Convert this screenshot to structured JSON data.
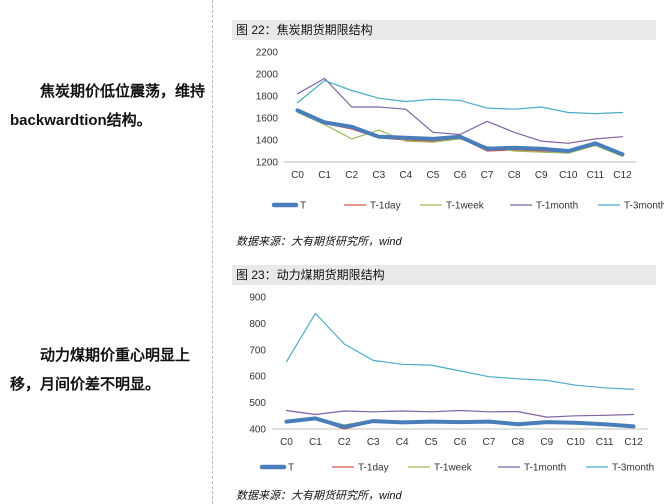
{
  "text": {
    "para1": "焦炭期价低位震荡，维持backwardtion结构。",
    "para2": "动力煤期价重心明显上移，月间价差不明显。"
  },
  "colors": {
    "T": "#4a7ebb",
    "T-1day": "#d9534f",
    "T-1week": "#9bbb59",
    "T-1month": "#7f63a1",
    "T-3month": "#4bacc6"
  },
  "chart_data": [
    {
      "type": "line",
      "title": "图 22：焦炭期货期限结构",
      "source": "数据来源：大有期货研究所，wind",
      "categories": [
        "C0",
        "C1",
        "C2",
        "C3",
        "C4",
        "C5",
        "C6",
        "C7",
        "C8",
        "C9",
        "C10",
        "C11",
        "C12"
      ],
      "ylim": [
        1200,
        2200
      ],
      "yticks": [
        1200,
        1400,
        1600,
        1800,
        2000,
        2200
      ],
      "legend_position": "bottom",
      "series": [
        {
          "name": "T",
          "values": [
            1670,
            1560,
            1520,
            1430,
            1420,
            1410,
            1430,
            1320,
            1330,
            1320,
            1300,
            1370,
            1270
          ]
        },
        {
          "name": "T-1day",
          "values": [
            1660,
            1550,
            1500,
            1420,
            1400,
            1390,
            1420,
            1300,
            1310,
            1300,
            1290,
            1360,
            1260
          ]
        },
        {
          "name": "T-1week",
          "values": [
            1650,
            1540,
            1410,
            1490,
            1390,
            1380,
            1410,
            1340,
            1300,
            1290,
            1280,
            1350,
            1250
          ]
        },
        {
          "name": "T-1month",
          "values": [
            1820,
            1960,
            1700,
            1700,
            1680,
            1470,
            1450,
            1570,
            1470,
            1390,
            1370,
            1410,
            1430
          ]
        },
        {
          "name": "T-3month",
          "values": [
            1740,
            1940,
            1850,
            1780,
            1750,
            1770,
            1760,
            1690,
            1680,
            1700,
            1650,
            1640,
            1650
          ]
        }
      ]
    },
    {
      "type": "line",
      "title": "图 23：动力煤期货期限结构",
      "source": "数据来源：大有期货研究所，wind",
      "categories": [
        "C0",
        "C1",
        "C2",
        "C3",
        "C4",
        "C5",
        "C6",
        "C7",
        "C8",
        "C9",
        "C10",
        "C11",
        "C12"
      ],
      "ylim": [
        400,
        900
      ],
      "yticks": [
        400,
        500,
        600,
        700,
        800,
        900
      ],
      "legend_position": "bottom",
      "series": [
        {
          "name": "T",
          "values": [
            428,
            440,
            408,
            430,
            425,
            428,
            426,
            428,
            418,
            426,
            424,
            418,
            410
          ]
        },
        {
          "name": "T-1day",
          "values": [
            425,
            438,
            400,
            428,
            422,
            426,
            424,
            426,
            414,
            424,
            422,
            416,
            408
          ]
        },
        {
          "name": "T-1week",
          "values": [
            430,
            442,
            415,
            435,
            428,
            430,
            428,
            432,
            420,
            428,
            426,
            420,
            412
          ]
        },
        {
          "name": "T-1month",
          "values": [
            470,
            455,
            468,
            465,
            468,
            465,
            470,
            465,
            466,
            445,
            450,
            452,
            455
          ]
        },
        {
          "name": "T-3month",
          "values": [
            655,
            838,
            722,
            660,
            645,
            642,
            620,
            598,
            590,
            584,
            566,
            556,
            550
          ]
        }
      ]
    }
  ]
}
